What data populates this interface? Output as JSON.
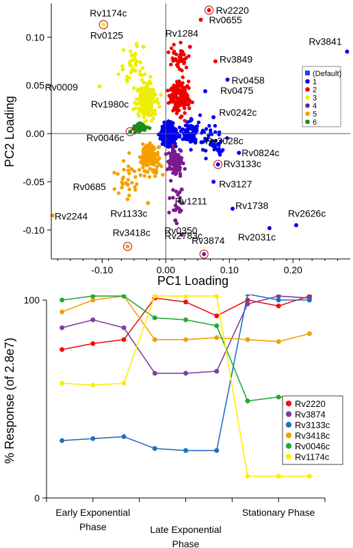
{
  "chart_data": [
    {
      "type": "scatter",
      "xlabel": "PC1 Loading",
      "ylabel": "PC2 Loading",
      "xlim": [
        -0.18,
        0.29
      ],
      "ylim": [
        -0.13,
        0.135
      ],
      "xticks": [
        "-0.10",
        "0.00",
        "0.10",
        "0.20"
      ],
      "xtick_values": [
        -0.1,
        0.0,
        0.1,
        0.2
      ],
      "yticks": [
        "0.10",
        "0.05",
        "0.00",
        "-0.05",
        "-0.10"
      ],
      "ytick_values": [
        0.1,
        0.05,
        0.0,
        -0.05,
        -0.1
      ],
      "legend_position": "right",
      "legend": [
        {
          "label": "(Default)",
          "color": "#1f3fff",
          "marker": "square"
        },
        {
          "label": "1",
          "color": "#0000ee",
          "marker": "circle"
        },
        {
          "label": "2",
          "color": "#ee0000",
          "marker": "circle"
        },
        {
          "label": "3",
          "color": "#eeee00",
          "marker": "circle"
        },
        {
          "label": "4",
          "color": "#7a1a8c",
          "marker": "circle"
        },
        {
          "label": "5",
          "color": "#f5a000",
          "marker": "circle"
        },
        {
          "label": "6",
          "color": "#1a8c1a",
          "marker": "circle"
        }
      ],
      "labeled_points": [
        {
          "label": "Rv1174c",
          "x": -0.098,
          "y": 0.113,
          "color": "#eeee00",
          "circled": true
        },
        {
          "label": "Rv2220",
          "x": 0.068,
          "y": 0.128,
          "color": "#ee0000",
          "circled": true
        },
        {
          "label": "Rv0655",
          "x": 0.055,
          "y": 0.118,
          "color": "#ee0000"
        },
        {
          "label": "Rv1284",
          "x": 0.038,
          "y": 0.09,
          "color": "#ee0000"
        },
        {
          "label": "Rv3841",
          "x": 0.285,
          "y": 0.085,
          "color": "#0000ee"
        },
        {
          "label": "Rv0125",
          "x": -0.035,
          "y": 0.09,
          "color": "#eeee00"
        },
        {
          "label": "Rv3849",
          "x": 0.078,
          "y": 0.075,
          "color": "#ee0000"
        },
        {
          "label": "Rv0458",
          "x": 0.097,
          "y": 0.056,
          "color": "#0000ee"
        },
        {
          "label": "Rv0009",
          "x": -0.104,
          "y": 0.049,
          "color": "#eeee00"
        },
        {
          "label": "Rv0475",
          "x": 0.062,
          "y": 0.044,
          "color": "#0000ee"
        },
        {
          "label": "Rv1980c",
          "x": -0.038,
          "y": 0.027,
          "color": "#eeee00"
        },
        {
          "label": "Rv0242c",
          "x": 0.075,
          "y": 0.017,
          "color": "#0000ee"
        },
        {
          "label": "Rv0046c",
          "x": -0.056,
          "y": 0.002,
          "color": "#1a8c1a",
          "circled": true
        },
        {
          "label": "Rv3028c",
          "x": 0.056,
          "y": -0.009,
          "color": "#0000ee"
        },
        {
          "label": "Rv0824c",
          "x": 0.115,
          "y": -0.02,
          "color": "#0000ee"
        },
        {
          "label": "Rv3133c",
          "x": 0.082,
          "y": -0.032,
          "color": "#0000ee",
          "circled": true
        },
        {
          "label": "Rv0685",
          "x": -0.06,
          "y": -0.053,
          "color": "#f5a000"
        },
        {
          "label": "Rv3127",
          "x": 0.075,
          "y": -0.05,
          "color": "#0000ee"
        },
        {
          "label": "Rv1211",
          "x": 0.025,
          "y": -0.058,
          "color": "#7a1a8c"
        },
        {
          "label": "Rv1738",
          "x": 0.105,
          "y": -0.078,
          "color": "#0000ee"
        },
        {
          "label": "Rv2244",
          "x": -0.178,
          "y": -0.085,
          "color": "#f5a000"
        },
        {
          "label": "Rv1133c",
          "x": -0.028,
          "y": -0.072,
          "color": "#f5a000"
        },
        {
          "label": "Rv0350",
          "x": 0.015,
          "y": -0.09,
          "color": "#7a1a8c"
        },
        {
          "label": "Rv2626c",
          "x": 0.205,
          "y": -0.095,
          "color": "#0000ee"
        },
        {
          "label": "Rv2783c",
          "x": 0.025,
          "y": -0.105,
          "color": "#7a1a8c"
        },
        {
          "label": "Rv2031c",
          "x": 0.163,
          "y": -0.098,
          "color": "#0000ee"
        },
        {
          "label": "Rv3418c",
          "x": -0.06,
          "y": -0.117,
          "color": "#f5a000",
          "circled": true
        },
        {
          "label": "Rv3874",
          "x": 0.06,
          "y": -0.125,
          "color": "#7a1a8c",
          "circled": true
        }
      ]
    },
    {
      "type": "line",
      "ylabel": "% Response (of 2.8e7)",
      "ylim": [
        0,
        100
      ],
      "yticks": [
        "100",
        "0"
      ],
      "ytick_values": [
        100,
        0
      ],
      "x": [
        1,
        2,
        3,
        4,
        5,
        6,
        7,
        8,
        9
      ],
      "xticks": [
        {
          "value": 2,
          "label": [
            "Early Exponential",
            "Phase"
          ],
          "row": "upper"
        },
        {
          "value": 5,
          "label": [
            "Late Exponential",
            "Phase"
          ],
          "row": "lower"
        },
        {
          "value": 8,
          "label": [
            "Stationary  Phase"
          ],
          "row": "upper"
        }
      ],
      "legend_position": "right",
      "series": [
        {
          "name": "Rv2220",
          "color": "#ee1111",
          "values": [
            75,
            78,
            80,
            101,
            99,
            92,
            100,
            97,
            102
          ]
        },
        {
          "name": "Rv3874",
          "color": "#7a3fa0",
          "values": [
            86,
            90,
            86,
            63,
            63,
            64,
            98,
            102,
            101
          ]
        },
        {
          "name": "Rv3133c",
          "color": "#1f6fc0",
          "values": [
            29,
            30,
            31,
            25,
            24,
            24,
            103,
            100,
            100
          ]
        },
        {
          "name": "Rv3418c",
          "color": "#f5a000",
          "values": [
            94,
            100,
            102,
            80,
            80,
            81,
            80,
            79,
            83
          ]
        },
        {
          "name": "Rv0046c",
          "color": "#22aa33",
          "values": [
            100,
            102,
            102,
            91,
            90,
            87,
            49,
            51,
            50
          ]
        },
        {
          "name": "Rv1174c",
          "color": "#ffee00",
          "values": [
            58,
            57,
            58,
            102,
            102,
            102,
            11,
            11,
            11
          ]
        }
      ]
    }
  ]
}
